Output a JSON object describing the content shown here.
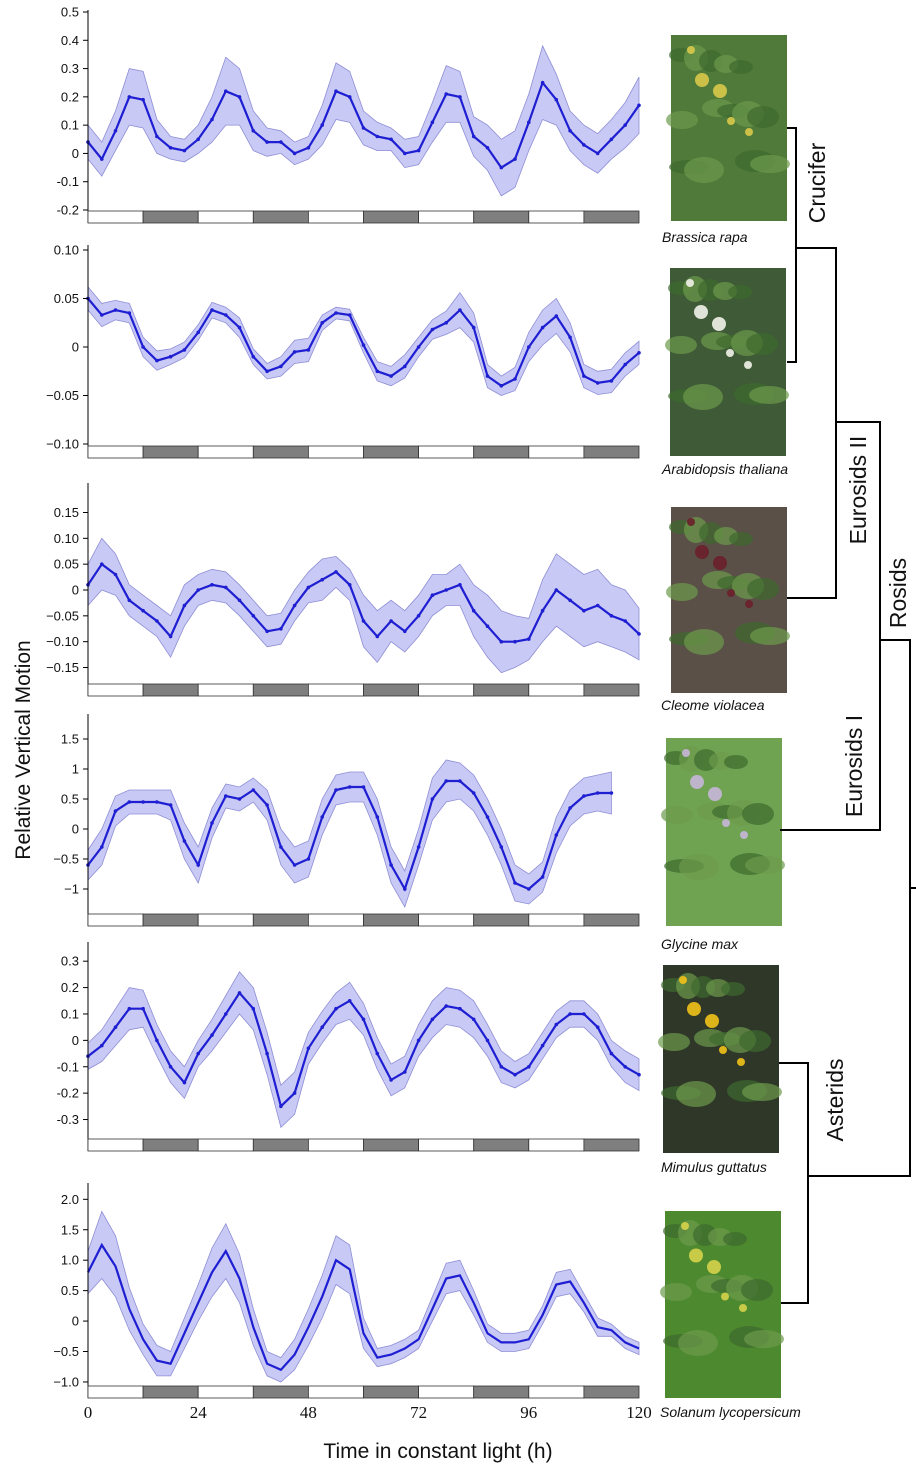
{
  "x_axis": {
    "label": "Time in constant light (h)",
    "ticks": [
      0,
      24,
      48,
      72,
      96,
      120
    ]
  },
  "y_axis": {
    "label": "Relative Vertical Motion"
  },
  "colors": {
    "mean": "#1e1ed2",
    "band": "#c9c9f5",
    "day": "#ffffff",
    "night": "#7f7f7f"
  },
  "photos": [
    "brassica-rapa-plant-photo",
    "arabidopsis-plant-photo",
    "cleome-plant-photo",
    "glycine-plant-photo",
    "mimulus-plant-photo",
    "solanum-plant-photo"
  ],
  "clades": {
    "crucifer": "Crucifer",
    "eurosids2": "Eurosids II",
    "rosids": "Rosids",
    "eurosids1": "Eurosids I",
    "asterids": "Asterids"
  },
  "chart_data": [
    {
      "type": "line",
      "species": "Brassica rapa",
      "ylim": [
        -0.2,
        0.5
      ],
      "yticks": [
        0.5,
        0.4,
        0.3,
        0.2,
        0.1,
        0,
        -0.1,
        -0.2
      ],
      "ytick_labels": [
        "0.5",
        "0.4",
        "0.3",
        "0.2",
        "0.1",
        "0",
        "-0.1",
        "-0.2"
      ],
      "x": [
        0,
        3,
        6,
        9,
        12,
        15,
        18,
        21,
        24,
        27,
        30,
        33,
        36,
        39,
        42,
        45,
        48,
        51,
        54,
        57,
        60,
        63,
        66,
        69,
        72,
        75,
        78,
        81,
        84,
        87,
        90,
        93,
        96,
        99,
        102,
        105,
        108,
        111,
        114,
        117,
        120
      ],
      "mean": [
        0.04,
        -0.02,
        0.08,
        0.2,
        0.19,
        0.06,
        0.02,
        0.01,
        0.05,
        0.12,
        0.22,
        0.2,
        0.08,
        0.04,
        0.04,
        0.0,
        0.02,
        0.1,
        0.22,
        0.2,
        0.09,
        0.06,
        0.05,
        0.0,
        0.01,
        0.11,
        0.21,
        0.2,
        0.06,
        0.02,
        -0.05,
        -0.02,
        0.11,
        0.25,
        0.19,
        0.08,
        0.03,
        0.0,
        0.05,
        0.1,
        0.17
      ],
      "spread": [
        0.06,
        0.06,
        0.07,
        0.1,
        0.1,
        0.06,
        0.04,
        0.04,
        0.05,
        0.08,
        0.12,
        0.1,
        0.07,
        0.05,
        0.04,
        0.04,
        0.04,
        0.07,
        0.1,
        0.09,
        0.06,
        0.05,
        0.04,
        0.05,
        0.05,
        0.07,
        0.1,
        0.09,
        0.07,
        0.08,
        0.1,
        0.1,
        0.1,
        0.13,
        0.09,
        0.07,
        0.07,
        0.07,
        0.07,
        0.08,
        0.1
      ]
    },
    {
      "type": "line",
      "species": "Arabidopsis thaliana",
      "ylim": [
        -0.1,
        0.1
      ],
      "yticks": [
        0.1,
        0.05,
        0,
        -0.05,
        -0.1
      ],
      "ytick_labels": [
        "0.10",
        "0.05",
        "0",
        "−0.05",
        "−0.10"
      ],
      "x": [
        0,
        3,
        6,
        9,
        12,
        15,
        18,
        21,
        24,
        27,
        30,
        33,
        36,
        39,
        42,
        45,
        48,
        51,
        54,
        57,
        60,
        63,
        66,
        69,
        72,
        75,
        78,
        81,
        84,
        87,
        90,
        93,
        96,
        99,
        102,
        105,
        108,
        111,
        114,
        117,
        120
      ],
      "mean": [
        0.05,
        0.033,
        0.038,
        0.035,
        0.0,
        -0.014,
        -0.01,
        -0.003,
        0.015,
        0.038,
        0.033,
        0.02,
        -0.01,
        -0.025,
        -0.02,
        -0.005,
        -0.003,
        0.025,
        0.035,
        0.033,
        0.002,
        -0.025,
        -0.03,
        -0.02,
        0.0,
        0.018,
        0.025,
        0.038,
        0.02,
        -0.03,
        -0.04,
        -0.033,
        0.0,
        0.02,
        0.032,
        0.01,
        -0.03,
        -0.037,
        -0.035,
        -0.018,
        -0.006
      ],
      "spread": [
        0.012,
        0.012,
        0.01,
        0.01,
        0.01,
        0.01,
        0.008,
        0.008,
        0.008,
        0.008,
        0.008,
        0.01,
        0.008,
        0.008,
        0.01,
        0.012,
        0.012,
        0.008,
        0.006,
        0.006,
        0.008,
        0.01,
        0.01,
        0.012,
        0.01,
        0.01,
        0.012,
        0.018,
        0.015,
        0.012,
        0.01,
        0.012,
        0.015,
        0.018,
        0.018,
        0.015,
        0.012,
        0.012,
        0.012,
        0.012,
        0.012
      ]
    },
    {
      "type": "line",
      "species": "Cleome violacea",
      "ylim": [
        -0.18,
        0.18
      ],
      "yticks": [
        0.15,
        0.1,
        0.05,
        0,
        -0.05,
        -0.1,
        -0.15
      ],
      "ytick_labels": [
        "0.15",
        "0.10",
        "0.05",
        "0",
        "−0.05",
        "−0.10",
        "−0.15"
      ],
      "x": [
        0,
        3,
        6,
        9,
        12,
        15,
        18,
        21,
        24,
        27,
        30,
        33,
        36,
        39,
        42,
        45,
        48,
        51,
        54,
        57,
        60,
        63,
        66,
        69,
        72,
        75,
        78,
        81,
        84,
        87,
        90,
        93,
        96,
        99,
        102,
        105,
        108,
        111,
        114,
        117,
        120
      ],
      "mean": [
        0.01,
        0.05,
        0.03,
        -0.02,
        -0.04,
        -0.06,
        -0.09,
        -0.03,
        0.0,
        0.01,
        0.005,
        -0.02,
        -0.05,
        -0.08,
        -0.075,
        -0.03,
        0.005,
        0.02,
        0.035,
        0.01,
        -0.06,
        -0.09,
        -0.06,
        -0.08,
        -0.05,
        -0.01,
        0.0,
        0.01,
        -0.04,
        -0.07,
        -0.1,
        -0.1,
        -0.095,
        -0.04,
        0.0,
        -0.02,
        -0.04,
        -0.03,
        -0.05,
        -0.06,
        -0.085
      ],
      "spread": [
        0.04,
        0.05,
        0.04,
        0.03,
        0.03,
        0.03,
        0.04,
        0.04,
        0.03,
        0.03,
        0.03,
        0.03,
        0.03,
        0.03,
        0.03,
        0.03,
        0.03,
        0.04,
        0.03,
        0.03,
        0.05,
        0.05,
        0.04,
        0.04,
        0.04,
        0.04,
        0.03,
        0.04,
        0.05,
        0.06,
        0.06,
        0.05,
        0.04,
        0.06,
        0.07,
        0.07,
        0.07,
        0.07,
        0.06,
        0.06,
        0.05
      ]
    },
    {
      "type": "line",
      "species": "Glycine max",
      "ylim": [
        -1.4,
        1.8
      ],
      "yticks": [
        1.5,
        1,
        0.5,
        0,
        -0.5,
        -1
      ],
      "ytick_labels": [
        "1.5",
        "1",
        "0.5",
        "0",
        "−0.5",
        "−1"
      ],
      "x": [
        0,
        3,
        6,
        9,
        12,
        15,
        18,
        21,
        24,
        27,
        30,
        33,
        36,
        39,
        42,
        45,
        48,
        51,
        54,
        57,
        60,
        63,
        66,
        69,
        72,
        75,
        78,
        81,
        84,
        87,
        90,
        93,
        96,
        99,
        102,
        105,
        108,
        111,
        114
      ],
      "mean": [
        -0.6,
        -0.3,
        0.3,
        0.45,
        0.45,
        0.45,
        0.4,
        -0.2,
        -0.6,
        0.1,
        0.55,
        0.5,
        0.65,
        0.4,
        -0.3,
        -0.6,
        -0.5,
        0.2,
        0.65,
        0.7,
        0.7,
        0.2,
        -0.6,
        -1.0,
        -0.3,
        0.5,
        0.8,
        0.8,
        0.6,
        0.2,
        -0.3,
        -0.9,
        -1.0,
        -0.8,
        -0.1,
        0.35,
        0.55,
        0.6,
        0.6
      ],
      "spread": [
        0.25,
        0.3,
        0.25,
        0.2,
        0.2,
        0.2,
        0.25,
        0.3,
        0.3,
        0.25,
        0.2,
        0.2,
        0.2,
        0.25,
        0.3,
        0.3,
        0.3,
        0.3,
        0.25,
        0.25,
        0.25,
        0.3,
        0.3,
        0.3,
        0.3,
        0.35,
        0.35,
        0.3,
        0.3,
        0.3,
        0.3,
        0.3,
        0.25,
        0.25,
        0.3,
        0.3,
        0.3,
        0.3,
        0.35
      ]
    },
    {
      "type": "line",
      "species": "Mimulus guttatus",
      "ylim": [
        -0.37,
        0.35
      ],
      "yticks": [
        0.3,
        0.2,
        0.1,
        0,
        -0.1,
        -0.2,
        -0.3
      ],
      "ytick_labels": [
        "0.3",
        "0.2",
        "0.1",
        "0",
        "-0.1",
        "-0.2",
        "-0.3"
      ],
      "x": [
        0,
        3,
        6,
        9,
        12,
        15,
        18,
        21,
        24,
        27,
        30,
        33,
        36,
        39,
        42,
        45,
        48,
        51,
        54,
        57,
        60,
        63,
        66,
        69,
        72,
        75,
        78,
        81,
        84,
        87,
        90,
        93,
        96,
        99,
        102,
        105,
        108,
        111,
        114,
        117,
        120
      ],
      "mean": [
        -0.06,
        -0.02,
        0.05,
        0.12,
        0.12,
        0.0,
        -0.1,
        -0.16,
        -0.05,
        0.02,
        0.1,
        0.18,
        0.12,
        -0.05,
        -0.25,
        -0.2,
        -0.03,
        0.05,
        0.12,
        0.15,
        0.08,
        -0.05,
        -0.15,
        -0.12,
        0.0,
        0.08,
        0.13,
        0.12,
        0.08,
        0.0,
        -0.1,
        -0.13,
        -0.1,
        -0.02,
        0.06,
        0.1,
        0.1,
        0.05,
        -0.05,
        -0.1,
        -0.13
      ],
      "spread": [
        0.05,
        0.06,
        0.07,
        0.08,
        0.07,
        0.06,
        0.06,
        0.06,
        0.05,
        0.06,
        0.07,
        0.08,
        0.08,
        0.08,
        0.08,
        0.08,
        0.06,
        0.06,
        0.06,
        0.07,
        0.06,
        0.06,
        0.06,
        0.06,
        0.06,
        0.07,
        0.07,
        0.07,
        0.07,
        0.06,
        0.06,
        0.05,
        0.05,
        0.05,
        0.05,
        0.05,
        0.05,
        0.05,
        0.05,
        0.06,
        0.06
      ]
    },
    {
      "type": "line",
      "species": "Solanum lycopersicum",
      "ylim": [
        -1.05,
        2.35
      ],
      "yticks": [
        2.0,
        1.5,
        1.0,
        0.5,
        0,
        -0.5,
        -1.0
      ],
      "ytick_labels": [
        "2.0",
        "1.5",
        "1.0",
        "0.5",
        "0",
        "−0.5",
        "−1.0"
      ],
      "x": [
        0,
        3,
        6,
        9,
        12,
        15,
        18,
        21,
        24,
        27,
        30,
        33,
        36,
        39,
        42,
        45,
        48,
        51,
        54,
        57,
        60,
        63,
        66,
        69,
        72,
        75,
        78,
        81,
        84,
        87,
        90,
        93,
        96,
        99,
        102,
        105,
        108,
        111,
        114,
        117,
        120
      ],
      "mean": [
        0.8,
        1.25,
        0.9,
        0.2,
        -0.3,
        -0.65,
        -0.7,
        -0.2,
        0.3,
        0.8,
        1.15,
        0.7,
        -0.1,
        -0.7,
        -0.8,
        -0.55,
        -0.1,
        0.4,
        1.0,
        0.85,
        -0.2,
        -0.6,
        -0.55,
        -0.45,
        -0.3,
        0.2,
        0.7,
        0.75,
        0.3,
        -0.2,
        -0.35,
        -0.35,
        -0.3,
        0.1,
        0.6,
        0.65,
        0.3,
        -0.1,
        -0.15,
        -0.35,
        -0.45
      ],
      "spread": [
        0.35,
        0.55,
        0.5,
        0.35,
        0.25,
        0.25,
        0.2,
        0.25,
        0.3,
        0.4,
        0.45,
        0.4,
        0.3,
        0.2,
        0.2,
        0.25,
        0.3,
        0.35,
        0.4,
        0.4,
        0.25,
        0.15,
        0.15,
        0.15,
        0.15,
        0.2,
        0.25,
        0.25,
        0.2,
        0.15,
        0.15,
        0.15,
        0.15,
        0.15,
        0.2,
        0.2,
        0.15,
        0.15,
        0.1,
        0.1,
        0.1
      ]
    }
  ]
}
